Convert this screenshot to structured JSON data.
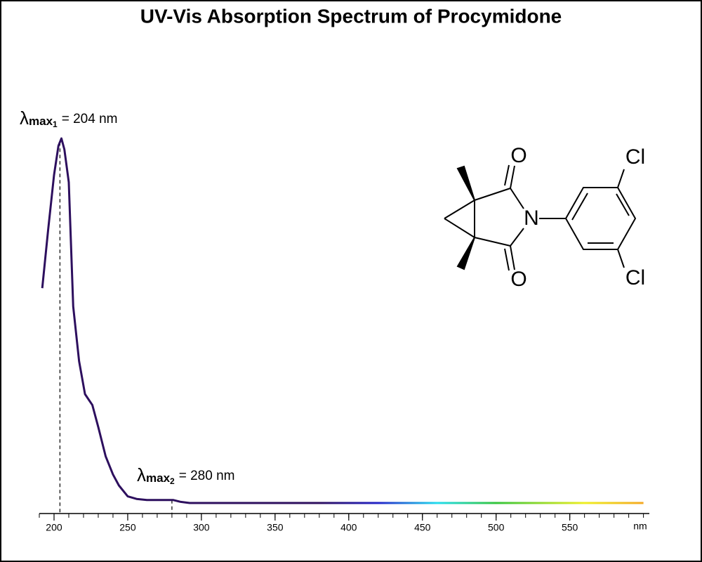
{
  "chart_data": {
    "type": "line",
    "title": "UV-Vis Absorption Spectrum of Procymidone",
    "x_label": "nm",
    "x": [
      192,
      196,
      200,
      203,
      205,
      207,
      210,
      213,
      217,
      221,
      226,
      230,
      235,
      240,
      244,
      250,
      256,
      263,
      270,
      281,
      286,
      292,
      350,
      400,
      450,
      500,
      550,
      600
    ],
    "values": [
      0.59,
      0.75,
      0.9,
      0.98,
      1.0,
      0.97,
      0.88,
      0.54,
      0.39,
      0.3,
      0.27,
      0.21,
      0.13,
      0.08,
      0.05,
      0.02,
      0.013,
      0.01,
      0.01,
      0.01,
      0.005,
      0.002,
      0.002,
      0.002,
      0.002,
      0.002,
      0.002,
      0.002
    ],
    "xlim": [
      190,
      604
    ],
    "ylim": [
      0,
      1
    ],
    "xticks": [
      200,
      250,
      300,
      350,
      400,
      450,
      500,
      550
    ],
    "minor_xticks": [
      190,
      200,
      210,
      220,
      230,
      240,
      250,
      260,
      270,
      280,
      290,
      300,
      310,
      320,
      330,
      340,
      350,
      360,
      370,
      380,
      390,
      400,
      410,
      420,
      430,
      440,
      450,
      460,
      470,
      480,
      490,
      500,
      510,
      520,
      530,
      540,
      550,
      560,
      570,
      580,
      590,
      600
    ],
    "gradient": [
      {
        "x": 380,
        "color": "#2d0f5e"
      },
      {
        "x": 420,
        "color": "#2424c8"
      },
      {
        "x": 460,
        "color": "#22dcee"
      },
      {
        "x": 500,
        "color": "#33c43a"
      },
      {
        "x": 560,
        "color": "#eeee22"
      },
      {
        "x": 604,
        "color": "#f5a020"
      }
    ],
    "annotations": [
      {
        "symbol": "λ",
        "sub": "max",
        "index": "1",
        "text": "= 204 nm",
        "x": 204
      },
      {
        "symbol": "λ",
        "sub": "max",
        "index": "2",
        "text": "= 280 nm",
        "x": 280
      }
    ]
  },
  "structure": {
    "atoms": [
      "O",
      "N",
      "Cl",
      "O",
      "Cl"
    ]
  }
}
